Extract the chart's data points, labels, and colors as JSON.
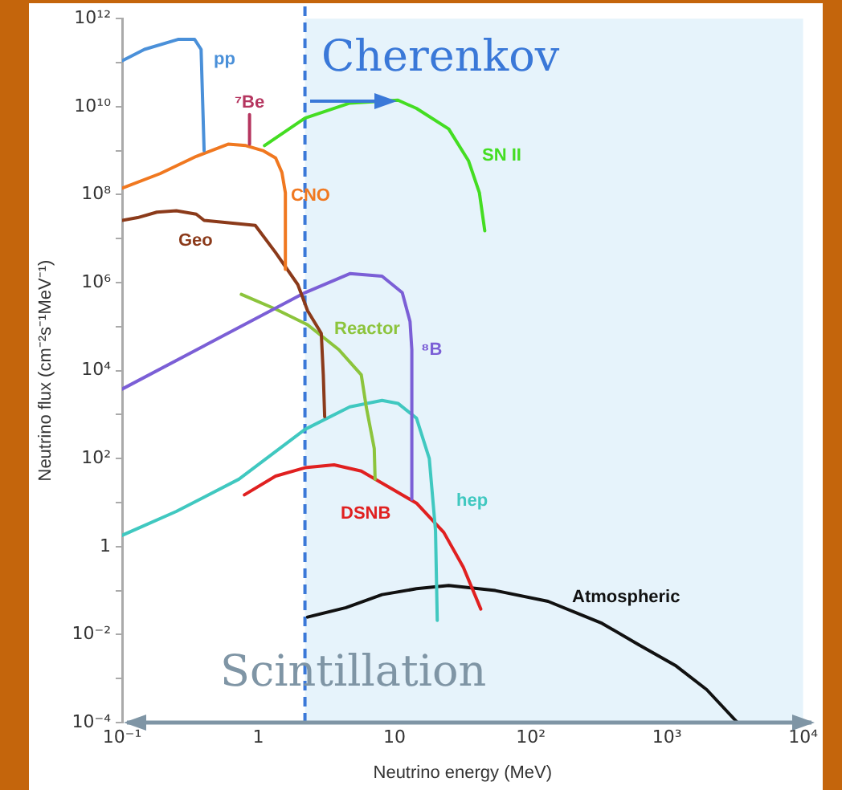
{
  "chart_data": {
    "type": "line",
    "xlabel": "Neutrino energy (MeV)",
    "ylabel": "Neutrino flux (cm⁻²s⁻¹MeV⁻¹)",
    "log": "xy",
    "legend": false,
    "marker": "none",
    "line_style": "solid",
    "xlim": [
      0.1,
      10000
    ],
    "ylim": [
      0.0001,
      1000000000000.0
    ],
    "xticks": [
      {
        "value": 0.1,
        "label": "10⁻¹"
      },
      1,
      10,
      {
        "value": 100,
        "label": "10²"
      },
      {
        "value": 1000,
        "label": "10³"
      },
      {
        "value": 10000,
        "label": "10⁴"
      }
    ],
    "yticks": [
      {
        "value": 0.0001,
        "label": "10⁻⁴"
      },
      {
        "value": 0.001,
        "label": null
      },
      {
        "value": 0.01,
        "label": "10⁻²"
      },
      {
        "value": 0.1,
        "label": null
      },
      1,
      {
        "value": 10,
        "label": null
      },
      {
        "value": 100,
        "label": "10²"
      },
      {
        "value": 1000,
        "label": null
      },
      {
        "value": 10000,
        "label": "10⁴"
      },
      {
        "value": 100000,
        "label": null
      },
      {
        "value": 1000000,
        "label": "10⁶"
      },
      {
        "value": 10000000,
        "label": null
      },
      {
        "value": 100000000,
        "label": "10⁸"
      },
      {
        "value": 1000000000,
        "label": null
      },
      {
        "value": 10000000000,
        "label": "10¹⁰"
      },
      {
        "value": 100000000000,
        "label": null
      },
      {
        "value": 1000000000000,
        "label": "10¹²"
      }
    ],
    "series": [
      {
        "name": "pp",
        "color": "#4a90d9",
        "x": [
          0.1,
          0.146,
          0.26,
          0.34,
          0.38,
          0.4
        ],
        "values": [
          110000000000.0,
          200000000000.0,
          340000000000.0,
          340000000000.0,
          200000000000.0,
          1000000000.0
        ]
      },
      {
        "name": "⁷Be",
        "color": "#b5355f",
        "x": [
          0.862,
          0.862
        ],
        "values": [
          1400000000.0,
          6600000000.0
        ]
      },
      {
        "name": "CNO",
        "color": "#f07820",
        "x": [
          0.1,
          0.19,
          0.35,
          0.6,
          0.81,
          1.08,
          1.34,
          1.49,
          1.58,
          1.58
        ],
        "values": [
          140000000.0,
          300000000.0,
          740000000.0,
          1400000000.0,
          1300000000.0,
          1000000000.0,
          680000000.0,
          320000000.0,
          110000000.0,
          2000000.0
        ]
      },
      {
        "name": "Geo",
        "color": "#8b3a1a",
        "x": [
          0.1,
          0.13,
          0.18,
          0.25,
          0.35,
          0.4,
          0.95,
          1.34,
          1.95,
          2.3,
          2.9,
          3,
          3.07
        ],
        "values": [
          26000000.0,
          30000000.0,
          40000000.0,
          43000000.0,
          36000000.0,
          26000000.0,
          20000000.0,
          4800000.0,
          900000.0,
          230000.0,
          70000.0,
          8000.0,
          900
        ]
      },
      {
        "name": "SN II",
        "color": "#44dd22",
        "x": [
          1.11,
          2.2,
          4.7,
          10.6,
          14.5,
          25,
          35,
          42,
          46
        ],
        "values": [
          1300000000.0,
          5500000000.0,
          12000000000.0,
          14000000000.0,
          9100000000.0,
          3100000000.0,
          580000000.0,
          110000000.0,
          15000000.0
        ]
      },
      {
        "name": "⁸B",
        "color": "#7b5fd6",
        "x": [
          0.1,
          2.2,
          4.7,
          8.1,
          11.4,
          13,
          13.4,
          13.4
        ],
        "values": [
          3800,
          590000.0,
          1600000.0,
          1400000.0,
          590000.0,
          130000.0,
          30000.0,
          12
        ]
      },
      {
        "name": "Reactor",
        "color": "#8cc43c",
        "x": [
          0.75,
          1.34,
          2.3,
          3.9,
          5.7,
          6.2,
          7.1,
          7.2
        ],
        "values": [
          540000.0,
          250000.0,
          110000.0,
          30000.0,
          8000,
          1500,
          170,
          34
        ]
      },
      {
        "name": "hep",
        "color": "#40c8c0",
        "x": [
          0.1,
          0.25,
          0.72,
          2.2,
          4.7,
          8.1,
          10.6,
          14.5,
          18,
          20,
          20.6
        ],
        "values": [
          1.8,
          6.3,
          34,
          460,
          1500,
          2100,
          1800,
          830,
          100,
          2.3,
          0.021
        ]
      },
      {
        "name": "DSNB",
        "color": "#e02020",
        "x": [
          0.79,
          1.34,
          2.2,
          3.6,
          5.7,
          9.7,
          14.5,
          23,
          32,
          43
        ],
        "values": [
          15,
          40,
          62,
          72,
          52,
          20,
          9.7,
          2.1,
          0.34,
          0.038
        ]
      },
      {
        "name": "Atmospheric",
        "color": "#111111",
        "x": [
          2.3,
          4.4,
          8.1,
          14.5,
          25,
          55,
          134,
          334,
          620,
          1150,
          1960,
          3300
        ],
        "values": [
          0.025,
          0.041,
          0.081,
          0.11,
          0.13,
          0.1,
          0.057,
          0.018,
          0.0059,
          0.002,
          0.00056,
          0.0001
        ]
      }
    ],
    "ref_lines": [
      {
        "axis": "x",
        "value": 2.2,
        "color": "#3a78d8",
        "line_style": "dashed"
      }
    ],
    "bands": [
      {
        "axis": "x",
        "from": 2.2,
        "to": 10000,
        "color": "#e6f3fb"
      }
    ],
    "annotations": [
      "Cherenkov",
      "Scintillation"
    ]
  }
}
